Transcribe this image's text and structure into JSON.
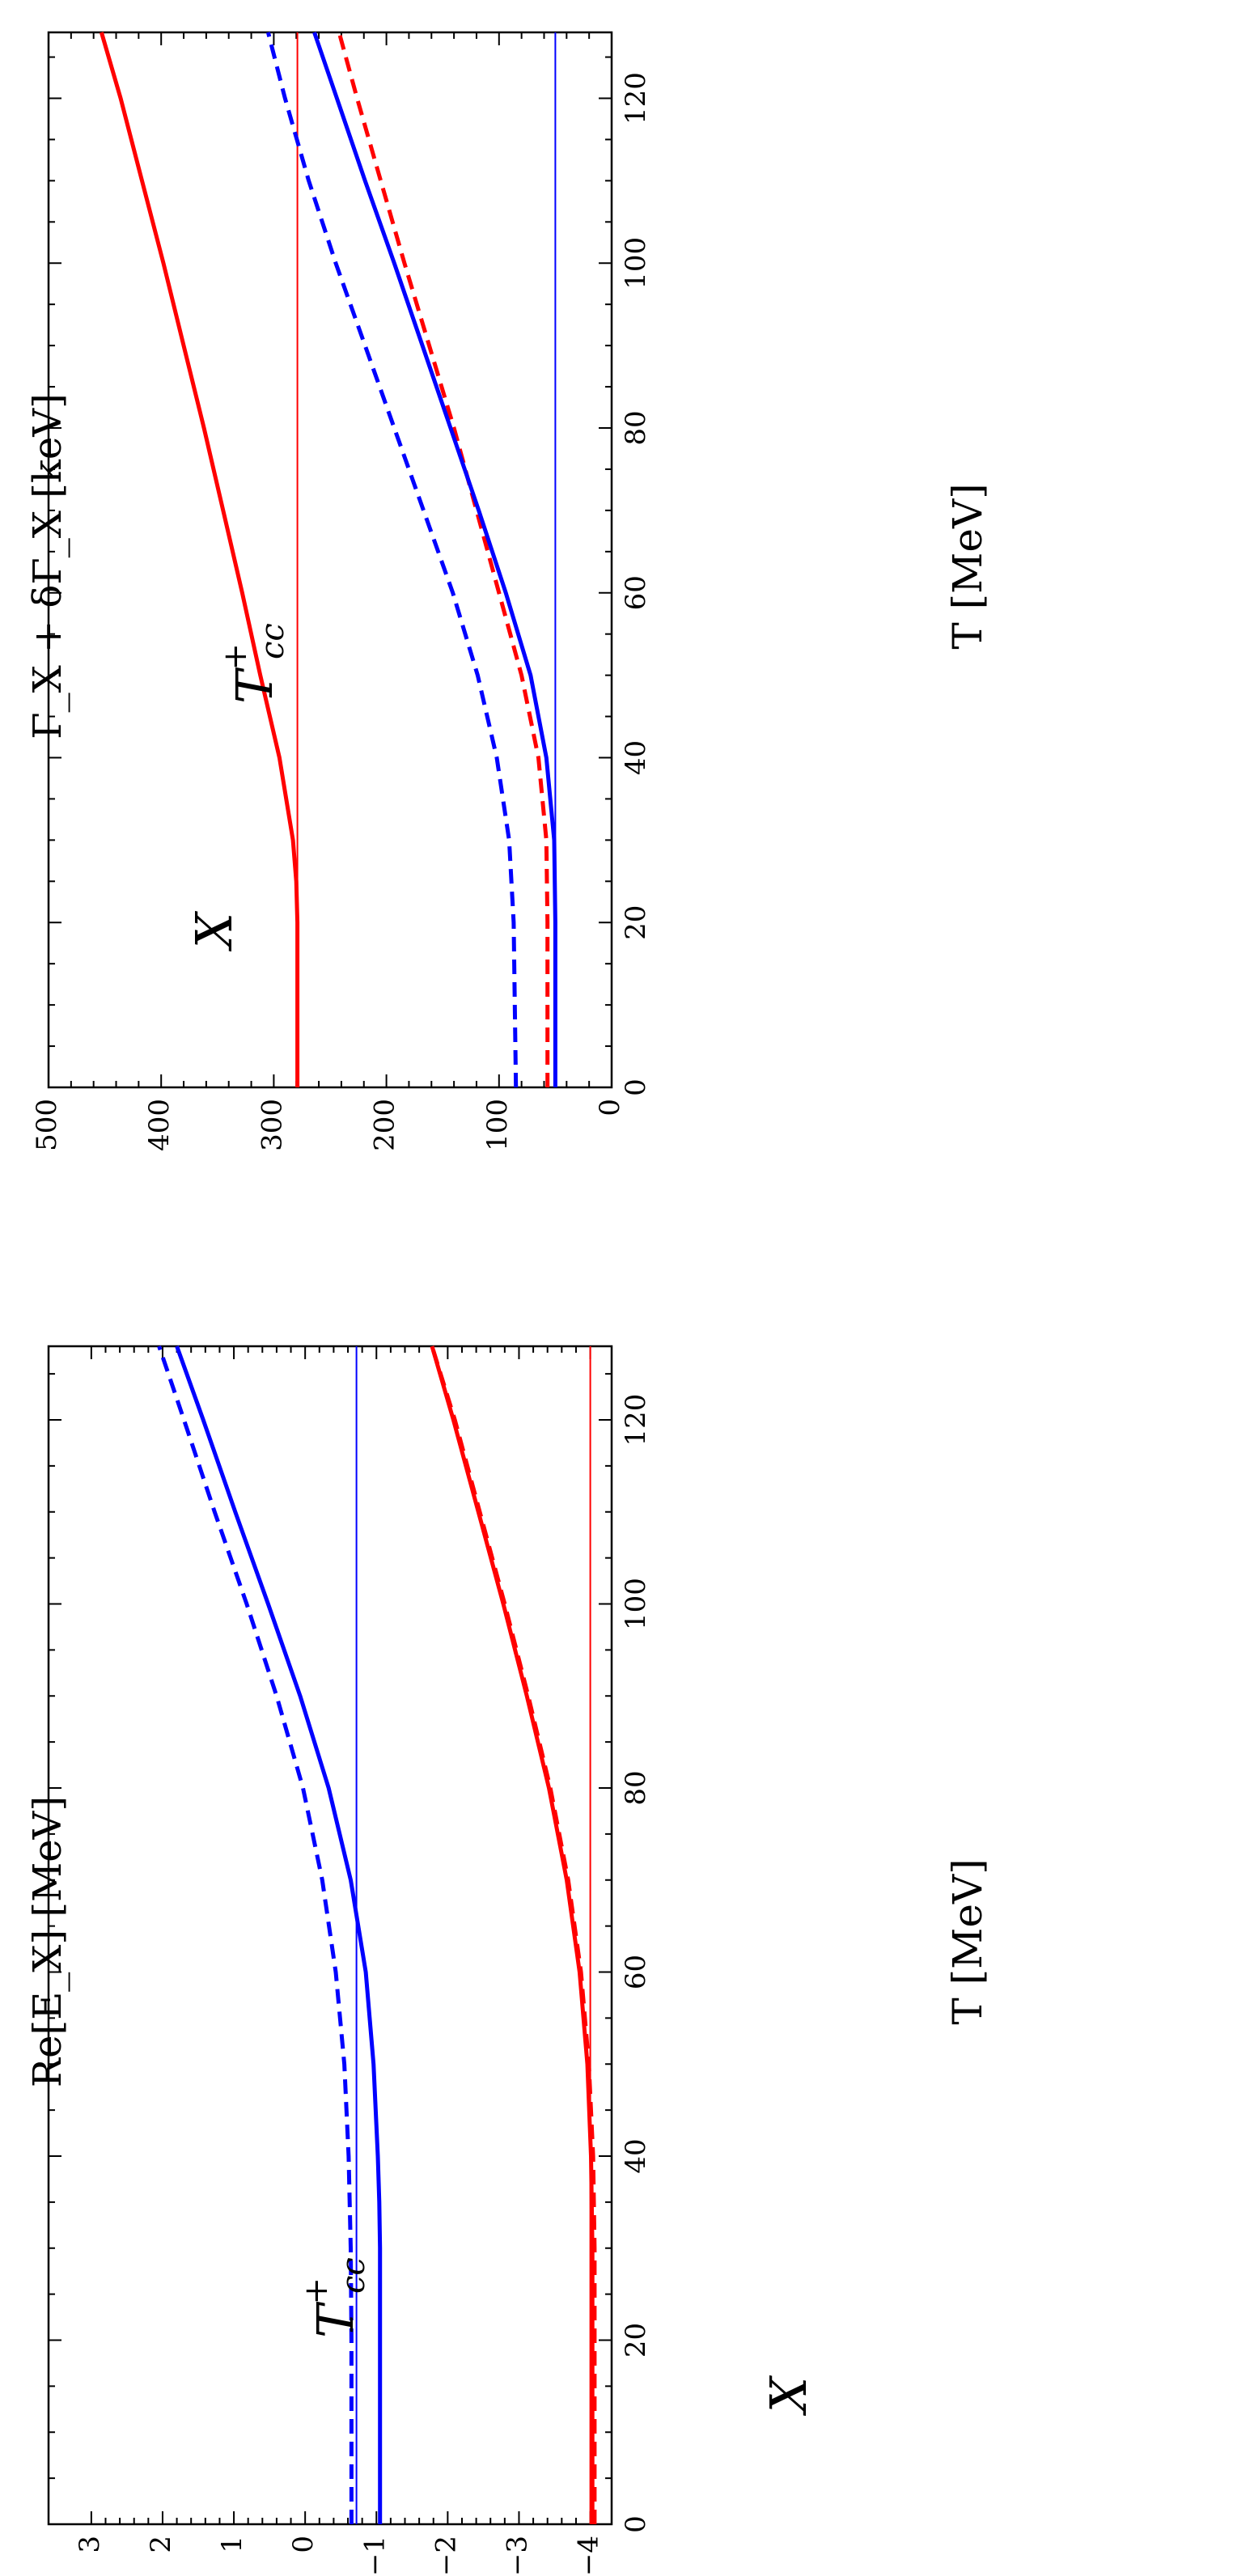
{
  "chart_data": [
    {
      "type": "line",
      "panel": "left",
      "xlabel": "T [MeV]",
      "ylabel": "Re[E_X] [MeV]",
      "xlim": [
        0,
        128
      ],
      "ylim": [
        -4.3,
        3.6
      ],
      "xticks": [
        "0",
        "20",
        "40",
        "60",
        "80",
        "100",
        "120"
      ],
      "yticks": [
        "−4",
        "−3",
        "−2",
        "−1",
        "0",
        "1",
        "2",
        "3"
      ],
      "annotations": [
        {
          "text": "T",
          "sup": "+",
          "sub": "cc",
          "color": "#0000ff"
        },
        {
          "text": "X",
          "color": "#ff0000"
        }
      ],
      "series": [
        {
          "color": "#0000ff",
          "style": "solid",
          "x": [
            0,
            20,
            30,
            35,
            40,
            50,
            60,
            70,
            80,
            90,
            100,
            110,
            120,
            128
          ],
          "y": [
            -1.05,
            -1.05,
            -1.05,
            -1.04,
            -1.02,
            -0.96,
            -0.85,
            -0.64,
            -0.33,
            0.07,
            0.52,
            0.98,
            1.43,
            1.8
          ]
        },
        {
          "color": "#0000ff",
          "style": "dashed",
          "x": [
            0,
            20,
            30,
            40,
            50,
            60,
            70,
            80,
            90,
            100,
            110,
            120,
            128
          ],
          "y": [
            -0.65,
            -0.65,
            -0.64,
            -0.61,
            -0.55,
            -0.43,
            -0.24,
            0.03,
            0.4,
            0.82,
            1.27,
            1.7,
            2.05
          ]
        },
        {
          "color": "#0000ff",
          "style": "thin",
          "x": [
            0,
            128
          ],
          "y": [
            -0.72,
            -0.72
          ]
        },
        {
          "color": "#ff0000",
          "style": "solid",
          "x": [
            0,
            30,
            40,
            50,
            60,
            70,
            80,
            90,
            100,
            110,
            120,
            128
          ],
          "y": [
            -4.03,
            -4.03,
            -4.01,
            -3.96,
            -3.85,
            -3.67,
            -3.42,
            -3.11,
            -2.78,
            -2.43,
            -2.08,
            -1.78
          ]
        },
        {
          "color": "#ff0000",
          "style": "dashed",
          "x": [
            0,
            30,
            40,
            50,
            60,
            70,
            80,
            90,
            100,
            110,
            120,
            128
          ],
          "y": [
            -4.06,
            -4.06,
            -4.04,
            -3.98,
            -3.87,
            -3.69,
            -3.44,
            -3.13,
            -2.8,
            -2.45,
            -2.1,
            -1.78
          ]
        },
        {
          "color": "#ff0000",
          "style": "thin",
          "x": [
            0,
            128
          ],
          "y": [
            -4.0,
            -4.0
          ]
        }
      ]
    },
    {
      "type": "line",
      "panel": "right",
      "xlabel": "T [MeV]",
      "ylabel": "Γ_X + δΓ_X [keV]",
      "xlim": [
        0,
        128
      ],
      "ylim": [
        0,
        500
      ],
      "xticks": [
        "0",
        "20",
        "40",
        "60",
        "80",
        "100",
        "120"
      ],
      "yticks": [
        "0",
        "100",
        "200",
        "300",
        "400",
        "500"
      ],
      "annotations": [
        {
          "text": "X",
          "color": "#ff0000"
        },
        {
          "text": "T",
          "sup": "+",
          "sub": "cc",
          "color": "#0000ff"
        }
      ],
      "series": [
        {
          "color": "#ff0000",
          "style": "solid",
          "x": [
            0,
            20,
            25,
            30,
            40,
            50,
            60,
            70,
            80,
            90,
            100,
            110,
            120,
            128
          ],
          "y": [
            279,
            279,
            280,
            283,
            295,
            312,
            328,
            345,
            362,
            380,
            398,
            417,
            436,
            453
          ]
        },
        {
          "color": "#ff0000",
          "style": "thin",
          "x": [
            0,
            128
          ],
          "y": [
            279,
            279
          ]
        },
        {
          "color": "#ff0000",
          "style": "dashed",
          "x": [
            0,
            20,
            30,
            40,
            50,
            60,
            70,
            80,
            90,
            100,
            110,
            120,
            128
          ],
          "y": [
            57,
            57,
            58,
            65,
            80,
            100,
            120,
            140,
            162,
            184,
            205,
            226,
            242
          ]
        },
        {
          "color": "#0000ff",
          "style": "solid",
          "x": [
            0,
            20,
            30,
            40,
            50,
            60,
            70,
            80,
            90,
            100,
            110,
            120,
            128
          ],
          "y": [
            50,
            50,
            51,
            58,
            72,
            94,
            118,
            143,
            168,
            193,
            219,
            244,
            264
          ]
        },
        {
          "color": "#0000ff",
          "style": "thin",
          "x": [
            0,
            128
          ],
          "y": [
            50,
            50
          ]
        },
        {
          "color": "#0000ff",
          "style": "dashed",
          "x": [
            0,
            20,
            30,
            40,
            50,
            60,
            70,
            80,
            90,
            100,
            110,
            120,
            128
          ],
          "y": [
            85,
            87,
            91,
            102,
            119,
            141,
            167,
            193,
            219,
            245,
            269,
            290,
            305
          ]
        }
      ]
    }
  ]
}
